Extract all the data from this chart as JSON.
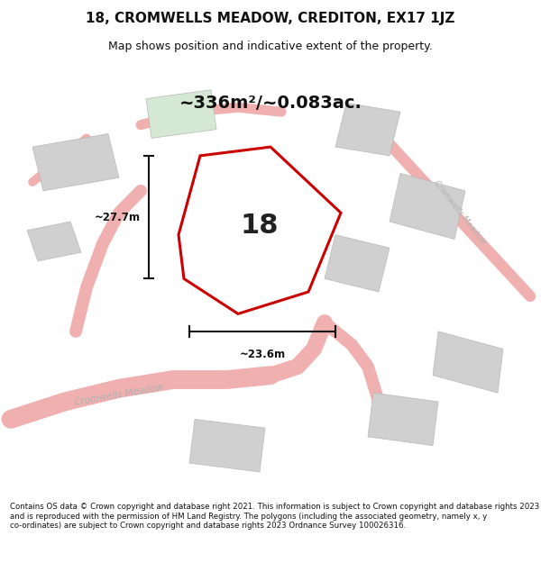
{
  "title": "18, CROMWELLS MEADOW, CREDITON, EX17 1JZ",
  "subtitle": "Map shows position and indicative extent of the property.",
  "area_label": "~336m²/~0.083ac.",
  "number_label": "18",
  "dim_h_label": "~27.7m",
  "dim_w_label": "~23.6m",
  "footer": "Contains OS data © Crown copyright and database right 2021. This information is subject to Crown copyright and database rights 2023 and is reproduced with the permission of HM Land Registry. The polygons (including the associated geometry, namely x, y co-ordinates) are subject to Crown copyright and database rights 2023 Ordnance Survey 100026316.",
  "bg_color": "#ffffff",
  "road_color": "#f0b0b0",
  "building_color": "#d0d0d0",
  "green_color": "#d4e8d4",
  "plot_outline_color": "#cc0000",
  "dim_color": "#111111",
  "road_label_color": "#b0b0b0",
  "title_fontsize": 11,
  "subtitle_fontsize": 9,
  "area_fontsize": 14,
  "number_fontsize": 22,
  "dim_fontsize": 8.5,
  "footer_fontsize": 6.2
}
